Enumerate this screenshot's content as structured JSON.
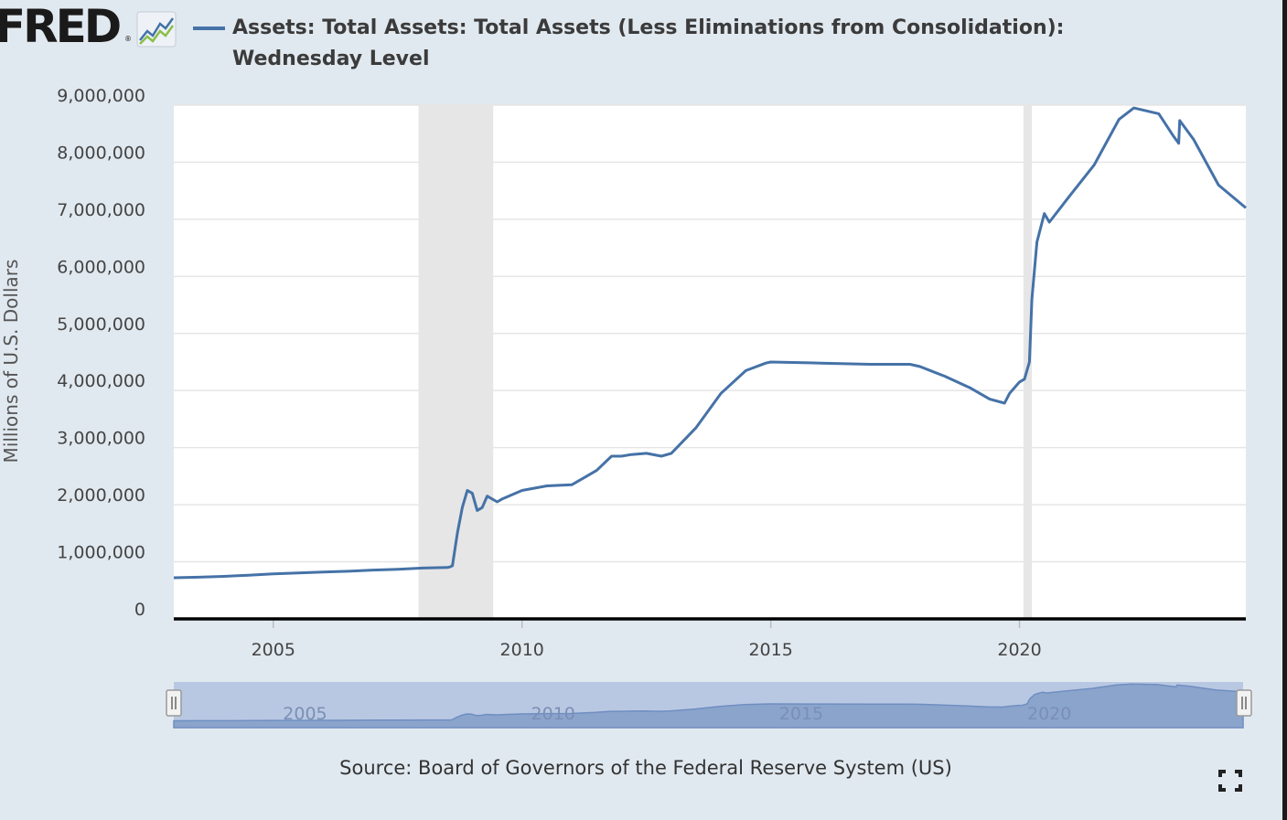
{
  "header": {
    "logo_text": "FRED",
    "logo_reg": "®",
    "title": "Assets: Total Assets: Total Assets (Less Eliminations from Consolidation): Wednesday Level"
  },
  "footer": {
    "source": "Source: Board of Governors of the Federal Reserve System (US)"
  },
  "colors": {
    "series": "#4572a7",
    "recession": "#e6e6e6",
    "navigator_fill": "#8ba4cc",
    "navigator_bg": "#b9c8e2"
  },
  "icons": [
    "fred-graph-icon",
    "expand-icon",
    "navigator-handle-icon"
  ],
  "chart_data": {
    "type": "line",
    "title": "Assets: Total Assets: Total Assets (Less Eliminations from Consolidation): Wednesday Level",
    "xlabel": "",
    "ylabel": "Millions of U.S. Dollars",
    "xlim": [
      2003.0,
      2024.55
    ],
    "ylim": [
      0,
      9000000
    ],
    "x_ticks": [
      2005,
      2010,
      2015,
      2020
    ],
    "x_tick_labels": [
      "2005",
      "2010",
      "2015",
      "2020"
    ],
    "y_ticks": [
      0,
      1000000,
      2000000,
      3000000,
      4000000,
      5000000,
      6000000,
      7000000,
      8000000,
      9000000
    ],
    "y_tick_labels": [
      "0",
      "1,000,000",
      "2,000,000",
      "3,000,000",
      "4,000,000",
      "5,000,000",
      "6,000,000",
      "7,000,000",
      "8,000,000",
      "9,000,000"
    ],
    "grid": true,
    "recessions": [
      [
        2007.92,
        2009.42
      ],
      [
        2020.08,
        2020.25
      ]
    ],
    "navigator_ticks": [
      "2005",
      "2010",
      "2015",
      "2020"
    ],
    "series": [
      {
        "name": "",
        "points": [
          [
            2003.0,
            720000
          ],
          [
            2003.5,
            730000
          ],
          [
            2004.0,
            745000
          ],
          [
            2004.5,
            765000
          ],
          [
            2005.0,
            790000
          ],
          [
            2005.5,
            805000
          ],
          [
            2006.0,
            820000
          ],
          [
            2006.5,
            835000
          ],
          [
            2007.0,
            855000
          ],
          [
            2007.5,
            870000
          ],
          [
            2008.0,
            890000
          ],
          [
            2008.5,
            900000
          ],
          [
            2008.55,
            910000
          ],
          [
            2008.6,
            930000
          ],
          [
            2008.7,
            1500000
          ],
          [
            2008.8,
            1950000
          ],
          [
            2008.9,
            2250000
          ],
          [
            2009.0,
            2200000
          ],
          [
            2009.1,
            1900000
          ],
          [
            2009.2,
            1950000
          ],
          [
            2009.3,
            2150000
          ],
          [
            2009.5,
            2050000
          ],
          [
            2009.6,
            2100000
          ],
          [
            2010.0,
            2250000
          ],
          [
            2010.5,
            2330000
          ],
          [
            2011.0,
            2350000
          ],
          [
            2011.5,
            2600000
          ],
          [
            2011.8,
            2850000
          ],
          [
            2012.0,
            2850000
          ],
          [
            2012.2,
            2880000
          ],
          [
            2012.5,
            2900000
          ],
          [
            2012.8,
            2850000
          ],
          [
            2013.0,
            2900000
          ],
          [
            2013.5,
            3350000
          ],
          [
            2014.0,
            3950000
          ],
          [
            2014.5,
            4350000
          ],
          [
            2014.9,
            4480000
          ],
          [
            2015.0,
            4500000
          ],
          [
            2016.0,
            4480000
          ],
          [
            2017.0,
            4460000
          ],
          [
            2017.8,
            4460000
          ],
          [
            2018.0,
            4420000
          ],
          [
            2018.5,
            4250000
          ],
          [
            2019.0,
            4050000
          ],
          [
            2019.4,
            3850000
          ],
          [
            2019.7,
            3780000
          ],
          [
            2019.8,
            3950000
          ],
          [
            2020.0,
            4150000
          ],
          [
            2020.1,
            4200000
          ],
          [
            2020.2,
            4500000
          ],
          [
            2020.25,
            5600000
          ],
          [
            2020.35,
            6600000
          ],
          [
            2020.5,
            7100000
          ],
          [
            2020.6,
            6950000
          ],
          [
            2021.0,
            7400000
          ],
          [
            2021.5,
            7950000
          ],
          [
            2022.0,
            8750000
          ],
          [
            2022.3,
            8950000
          ],
          [
            2022.8,
            8850000
          ],
          [
            2023.1,
            8450000
          ],
          [
            2023.2,
            8330000
          ],
          [
            2023.22,
            8730000
          ],
          [
            2023.5,
            8400000
          ],
          [
            2024.0,
            7600000
          ],
          [
            2024.55,
            7200000
          ]
        ]
      }
    ]
  }
}
